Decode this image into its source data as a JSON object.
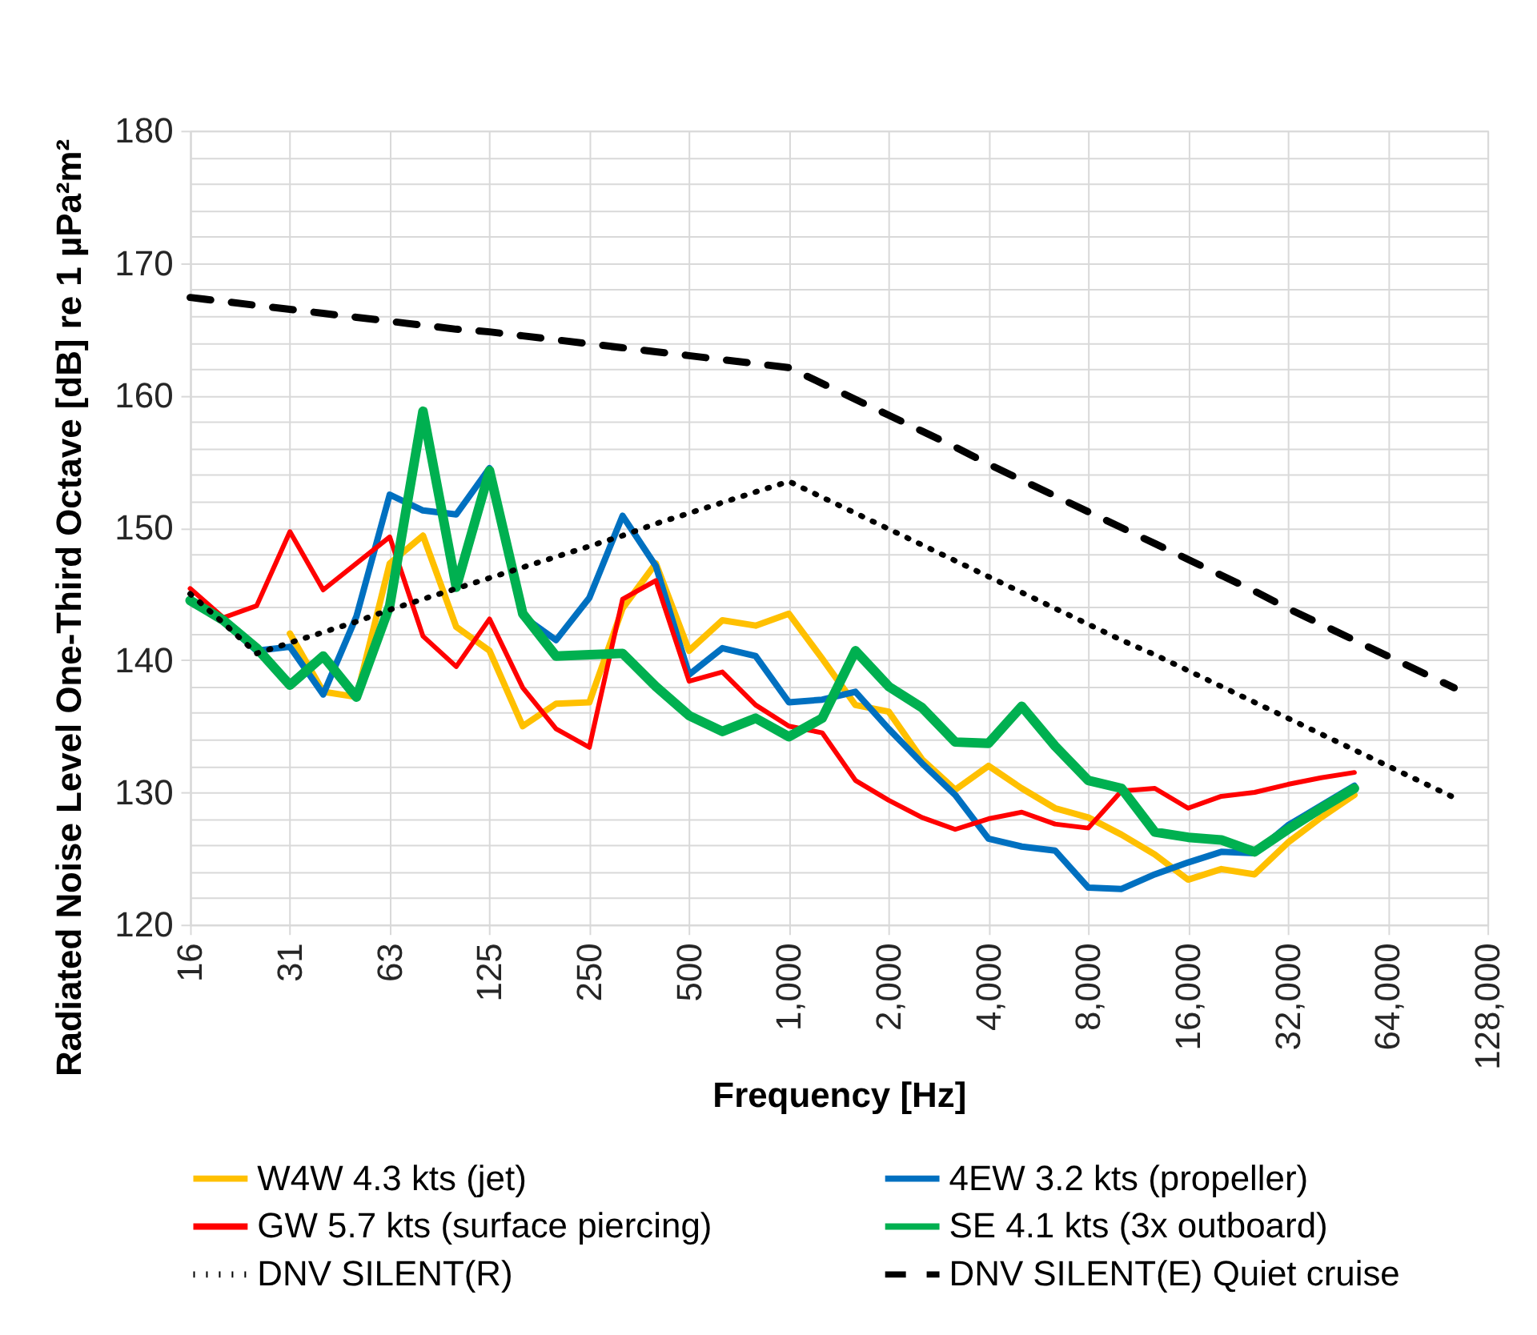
{
  "chart_data": {
    "type": "line",
    "xlabel": "Frequency [Hz]",
    "ylabel": "Radiated Noise Level One-Third Octave [dB] re 1 µPa²m²",
    "categories": [
      "16",
      null,
      null,
      "31",
      null,
      null,
      "63",
      null,
      null,
      "125",
      null,
      null,
      "250",
      null,
      null,
      "500",
      null,
      null,
      "1,000",
      null,
      null,
      "2,000",
      null,
      null,
      "4,000",
      null,
      null,
      "8,000",
      null,
      null,
      "16,000",
      null,
      null,
      "32,000",
      null,
      null,
      "64,000",
      null,
      null,
      "128,000"
    ],
    "ylim": [
      120,
      180
    ],
    "yticks": [
      120,
      {
        "value": 122,
        "label": null
      },
      {
        "value": 124,
        "label": null
      },
      {
        "value": 126,
        "label": null
      },
      {
        "value": 128,
        "label": null
      },
      130,
      {
        "value": 132,
        "label": null
      },
      {
        "value": 134,
        "label": null
      },
      {
        "value": 136,
        "label": null
      },
      {
        "value": 138,
        "label": null
      },
      140,
      {
        "value": 142,
        "label": null
      },
      {
        "value": 144,
        "label": null
      },
      {
        "value": 146,
        "label": null
      },
      {
        "value": 148,
        "label": null
      },
      150,
      {
        "value": 152,
        "label": null
      },
      {
        "value": 154,
        "label": null
      },
      {
        "value": 156,
        "label": null
      },
      {
        "value": 158,
        "label": null
      },
      160,
      {
        "value": 162,
        "label": null
      },
      {
        "value": 164,
        "label": null
      },
      {
        "value": 166,
        "label": null
      },
      {
        "value": 168,
        "label": null
      },
      170,
      {
        "value": 172,
        "label": null
      },
      {
        "value": 174,
        "label": null
      },
      {
        "value": 176,
        "label": null
      },
      {
        "value": 178,
        "label": null
      },
      180
    ],
    "grid": true,
    "legend": "bottom",
    "series": [
      {
        "name": "W4W 4.3 kts (jet)",
        "color": "#ffc000",
        "line_style": "solid",
        "values": [
          null,
          null,
          null,
          142.0,
          137.6,
          137.2,
          147.3,
          149.4,
          142.5,
          140.7,
          135.0,
          136.7,
          136.8,
          143.9,
          147.3,
          140.7,
          143.0,
          142.6,
          143.5,
          140.1,
          136.6,
          136.1,
          132.5,
          130.2,
          132.0,
          130.3,
          128.8,
          128.1,
          126.8,
          125.3,
          123.4,
          124.2,
          123.8,
          126.2,
          128.1,
          129.8,
          null,
          null,
          null,
          null
        ]
      },
      {
        "name": "4EW 3.2 kts (propeller)",
        "color": "#0070c0",
        "line_style": "solid",
        "values": [
          144.5,
          142.9,
          140.7,
          141.0,
          137.4,
          143.3,
          152.5,
          151.3,
          151.0,
          154.5,
          143.3,
          141.5,
          144.7,
          150.9,
          147.1,
          138.9,
          140.9,
          140.3,
          136.8,
          137.0,
          137.6,
          134.8,
          132.2,
          129.8,
          126.5,
          125.9,
          125.6,
          122.8,
          122.7,
          123.8,
          124.7,
          125.5,
          125.4,
          127.5,
          129.0,
          130.5,
          null,
          null,
          null,
          null
        ]
      },
      {
        "name": "GW 5.7 kts (surface piercing)",
        "color": "#ff0000",
        "line_style": "solid",
        "values": [
          145.4,
          143.2,
          144.1,
          149.7,
          145.3,
          147.3,
          149.3,
          141.8,
          139.5,
          143.1,
          137.9,
          134.8,
          133.4,
          144.6,
          146.0,
          138.4,
          139.1,
          136.6,
          135.0,
          134.5,
          130.9,
          129.4,
          128.1,
          127.2,
          128.0,
          128.5,
          127.6,
          127.3,
          130.1,
          130.3,
          128.8,
          129.7,
          130.0,
          130.6,
          131.1,
          131.5,
          null,
          null,
          null,
          null
        ]
      },
      {
        "name": "SE 4.1 kts (3x outboard)",
        "color": "#00b050",
        "line_style": "solid",
        "values": [
          144.5,
          143.0,
          140.9,
          138.1,
          140.3,
          137.2,
          144.1,
          158.8,
          145.5,
          154.3,
          143.5,
          140.3,
          140.4,
          140.5,
          138.0,
          135.8,
          134.6,
          135.6,
          134.2,
          135.6,
          140.7,
          138.0,
          136.4,
          133.8,
          133.7,
          136.5,
          133.5,
          130.9,
          130.3,
          127.0,
          126.6,
          126.4,
          125.5,
          127.2,
          128.8,
          130.3,
          null,
          null,
          null,
          null
        ]
      },
      {
        "name": "DNV SILENT(R)",
        "color": "#000000",
        "line_style": "dotted",
        "values": [
          145.0,
          142.8,
          140.5,
          141.3,
          142.1,
          142.9,
          143.8,
          144.6,
          145.4,
          146.2,
          147.0,
          147.8,
          148.6,
          149.4,
          150.3,
          151.1,
          151.9,
          152.7,
          153.5,
          152.3,
          151.1,
          149.9,
          148.7,
          147.5,
          146.3,
          145.1,
          143.9,
          142.7,
          141.5,
          140.4,
          139.2,
          138.0,
          136.8,
          135.6,
          134.4,
          133.2,
          132.0,
          130.8,
          129.6,
          null
        ]
      },
      {
        "name": "DNV SILENT(E) Quiet cruise",
        "color": "#000000",
        "line_style": "dashed",
        "values": [
          167.4,
          167.1,
          166.8,
          166.5,
          166.2,
          165.9,
          165.6,
          165.3,
          165.0,
          164.8,
          164.5,
          164.2,
          163.9,
          163.6,
          163.3,
          163.0,
          162.7,
          162.4,
          162.1,
          160.9,
          159.7,
          158.5,
          157.3,
          156.1,
          154.8,
          153.6,
          152.4,
          151.2,
          150.0,
          148.8,
          147.6,
          146.4,
          145.2,
          143.9,
          142.7,
          141.5,
          140.3,
          139.1,
          137.9,
          null
        ]
      }
    ]
  }
}
